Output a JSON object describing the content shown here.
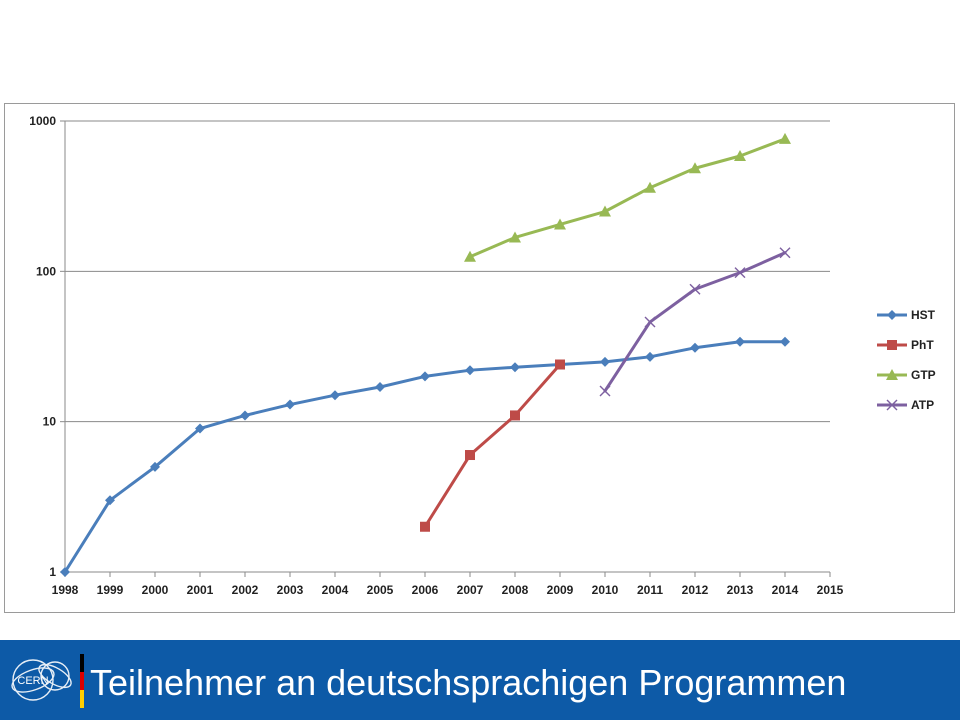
{
  "chart_data": {
    "type": "line",
    "title": "",
    "xlabel": "",
    "ylabel": "",
    "y_scale": "log",
    "ylim": [
      1,
      1000
    ],
    "xlim": [
      1998,
      2015
    ],
    "x_ticks": [
      "1998",
      "1999",
      "2000",
      "2001",
      "2002",
      "2003",
      "2004",
      "2005",
      "2006",
      "2007",
      "2008",
      "2009",
      "2010",
      "2011",
      "2012",
      "2013",
      "2014",
      "2015"
    ],
    "y_ticks": [
      "1",
      "10",
      "100",
      "1000"
    ],
    "grid": "horizontal",
    "legend_position": "right",
    "series": [
      {
        "name": "HST",
        "color": "#4a7ebb",
        "marker": "diamond",
        "x": [
          1998,
          1999,
          2000,
          2001,
          2002,
          2003,
          2004,
          2005,
          2006,
          2007,
          2008,
          2009,
          2010,
          2011,
          2012,
          2013,
          2014
        ],
        "y": [
          1,
          3,
          5,
          9,
          11,
          13,
          15,
          17,
          20,
          22,
          23,
          24,
          25,
          27,
          31,
          34,
          34
        ]
      },
      {
        "name": "PhT",
        "color": "#be4b48",
        "marker": "square",
        "x": [
          2006,
          2007,
          2008,
          2009
        ],
        "y": [
          2,
          6,
          11,
          24
        ]
      },
      {
        "name": "GTP",
        "color": "#98b954",
        "marker": "triangle",
        "x": [
          2007,
          2008,
          2009,
          2010,
          2011,
          2012,
          2013,
          2014
        ],
        "y": [
          125,
          168,
          205,
          250,
          360,
          485,
          585,
          760
        ]
      },
      {
        "name": "ATP",
        "color": "#7d60a0",
        "marker": "x",
        "x": [
          2010,
          2011,
          2012,
          2013,
          2014
        ],
        "y": [
          16,
          46,
          76,
          98,
          133
        ]
      }
    ]
  },
  "footer": {
    "title": "Teilnehmer an deutschsprachigen Programmen",
    "background": "#0d5aa7",
    "logo_icon": "cern-logo-icon",
    "logo_text": "CERN",
    "flag_colors": [
      "#000000",
      "#dd0000",
      "#ffce00"
    ]
  }
}
